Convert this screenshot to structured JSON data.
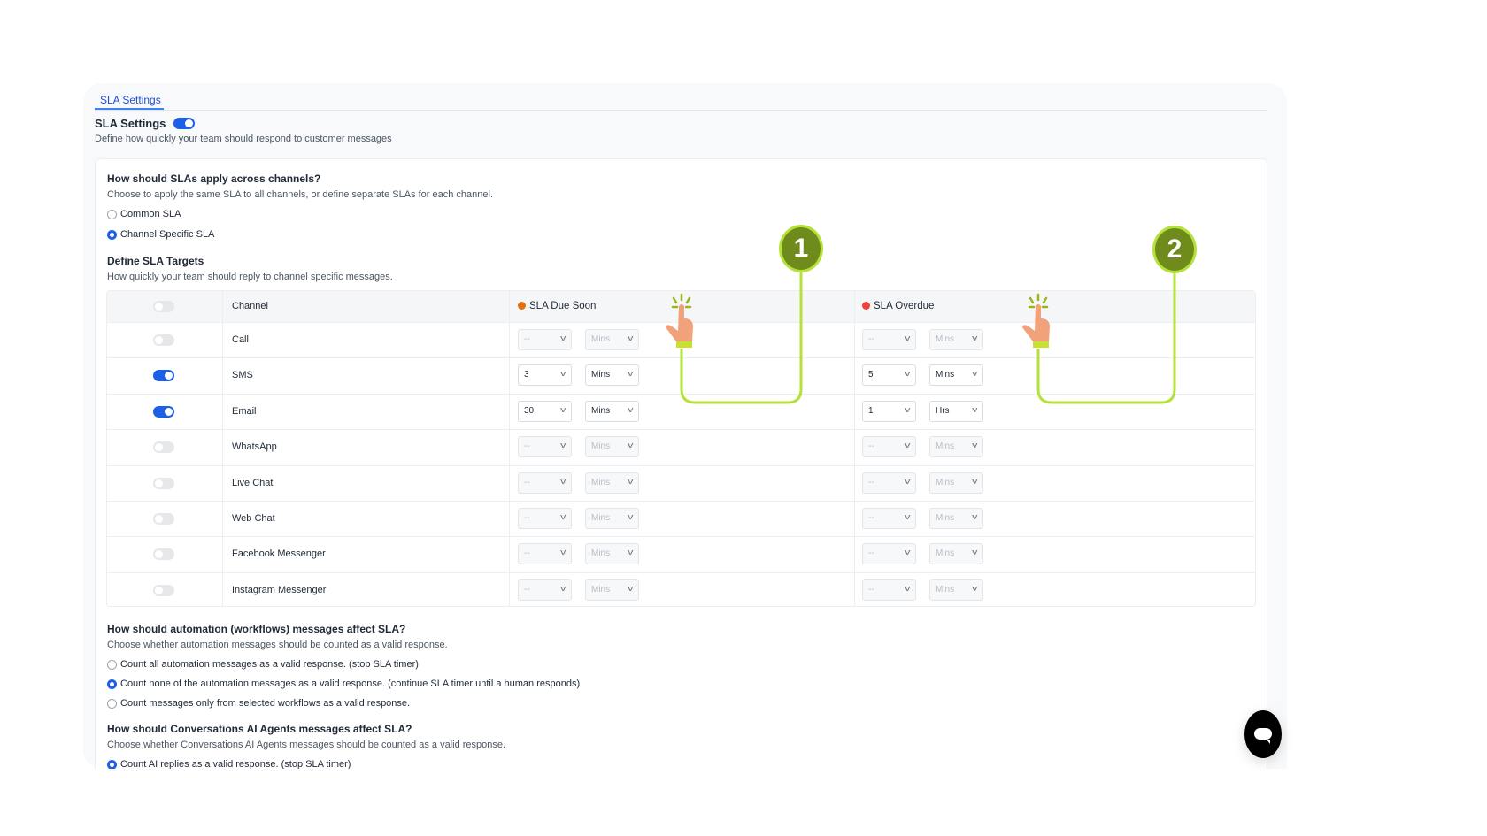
{
  "tabs": [
    {
      "label": "SLA Settings",
      "active": true
    }
  ],
  "header": {
    "title": "SLA Settings",
    "enabled": true,
    "description": "Define how quickly your team should respond to customer messages"
  },
  "channels_question": {
    "title": "How should SLAs apply across channels?",
    "description": "Choose to apply the same SLA to all channels, or define separate SLAs for each channel.",
    "options": [
      {
        "label": "Common SLA",
        "selected": false
      },
      {
        "label": "Channel Specific SLA",
        "selected": true
      }
    ]
  },
  "targets": {
    "title": "Define SLA Targets",
    "description": "How quickly your team should reply to channel specific messages.",
    "columns": {
      "channel": "Channel",
      "due_soon": "SLA Due Soon",
      "overdue": "SLA Overdue"
    },
    "colors": {
      "due_soon": "#e0700f",
      "overdue": "#ef4137",
      "accent": "#1d5fe6"
    },
    "rows": [
      {
        "channel": "Call",
        "enabled": false,
        "due_value": "--",
        "due_unit": "Mins",
        "over_value": "--",
        "over_unit": "Mins"
      },
      {
        "channel": "SMS",
        "enabled": true,
        "due_value": "3",
        "due_unit": "Mins",
        "over_value": "5",
        "over_unit": "Mins"
      },
      {
        "channel": "Email",
        "enabled": true,
        "due_value": "30",
        "due_unit": "Mins",
        "over_value": "1",
        "over_unit": "Hrs"
      },
      {
        "channel": "WhatsApp",
        "enabled": false,
        "due_value": "--",
        "due_unit": "Mins",
        "over_value": "--",
        "over_unit": "Mins"
      },
      {
        "channel": "Live Chat",
        "enabled": false,
        "due_value": "--",
        "due_unit": "Mins",
        "over_value": "--",
        "over_unit": "Mins"
      },
      {
        "channel": "Web Chat",
        "enabled": false,
        "due_value": "--",
        "due_unit": "Mins",
        "over_value": "--",
        "over_unit": "Mins"
      },
      {
        "channel": "Facebook Messenger",
        "enabled": false,
        "due_value": "--",
        "due_unit": "Mins",
        "over_value": "--",
        "over_unit": "Mins"
      },
      {
        "channel": "Instagram Messenger",
        "enabled": false,
        "due_value": "--",
        "due_unit": "Mins",
        "over_value": "--",
        "over_unit": "Mins"
      }
    ]
  },
  "automation_question": {
    "title": "How should automation (workflows) messages affect SLA?",
    "description": "Choose whether automation messages should be counted as a valid response.",
    "options": [
      {
        "label": "Count all automation messages as a valid response. (stop SLA timer)",
        "selected": false
      },
      {
        "label": "Count none of the automation messages as a valid response. (continue SLA timer until a human responds)",
        "selected": true
      },
      {
        "label": "Count messages only from selected workflows as a valid response.",
        "selected": false
      }
    ]
  },
  "ai_question": {
    "title": "How should Conversations AI Agents messages affect SLA?",
    "description": "Choose whether Conversations AI Agents messages should be counted as a valid response.",
    "options": [
      {
        "label": "Count AI replies as a valid response. (stop SLA timer)",
        "selected": true
      }
    ]
  },
  "annotations": [
    {
      "label": "1",
      "icon": "pointing-hand-icon"
    },
    {
      "label": "2",
      "icon": "pointing-hand-icon"
    }
  ],
  "chat_widget": {
    "icon": "chat-bubble-icon"
  }
}
